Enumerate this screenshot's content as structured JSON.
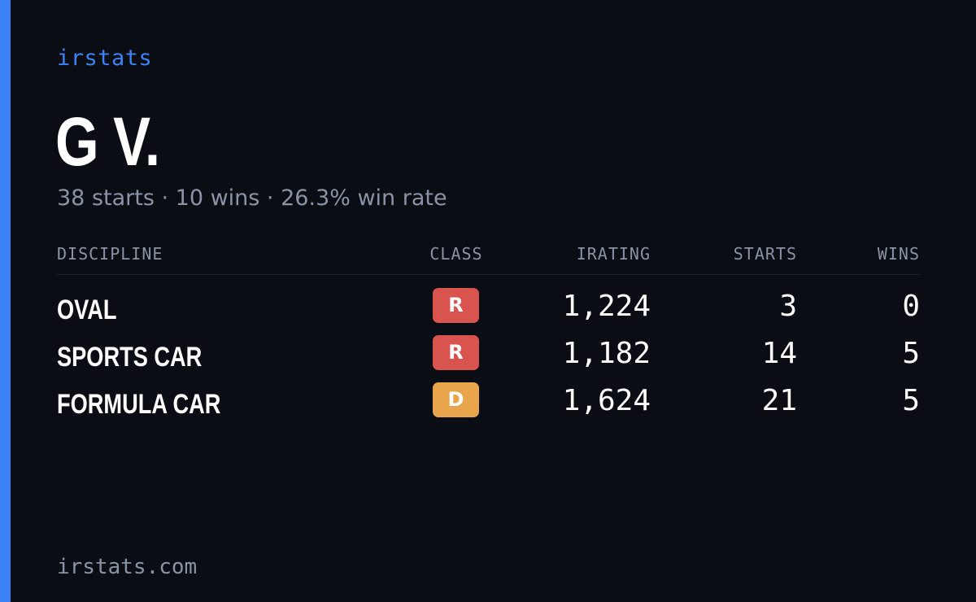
{
  "brand": "irstats",
  "driver": {
    "name": "G V."
  },
  "summary": "38 starts · 10 wins · 26.3% win rate",
  "table": {
    "headers": {
      "discipline": "DISCIPLINE",
      "class": "CLASS",
      "irating": "IRATING",
      "starts": "STARTS",
      "wins": "WINS"
    },
    "rows": [
      {
        "discipline": "OVAL",
        "class": "R",
        "class_color": "#d9534f",
        "irating": "1,224",
        "starts": "3",
        "wins": "0"
      },
      {
        "discipline": "SPORTS CAR",
        "class": "R",
        "class_color": "#d9534f",
        "irating": "1,182",
        "starts": "14",
        "wins": "5"
      },
      {
        "discipline": "FORMULA CAR",
        "class": "D",
        "class_color": "#e8a54b",
        "irating": "1,624",
        "starts": "21",
        "wins": "5"
      }
    ]
  },
  "footer": {
    "url": "irstats.com"
  },
  "colors": {
    "accent": "#3b82f6",
    "background": "#0a0d14",
    "muted_text": "#8a94a6"
  }
}
